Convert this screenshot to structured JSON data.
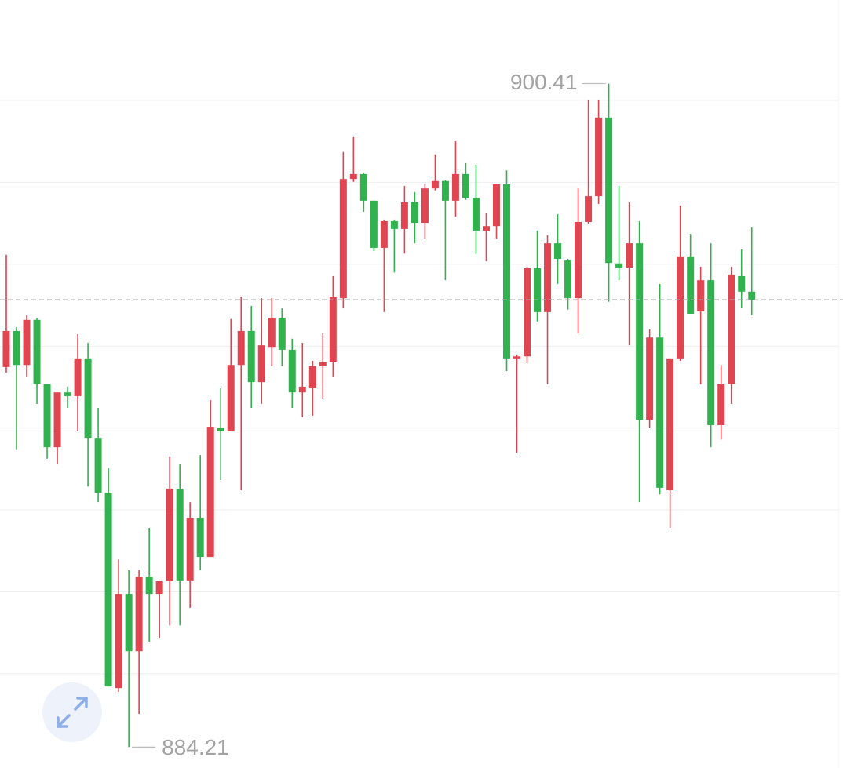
{
  "chart_data": {
    "type": "candlestick",
    "up_color": "#e04552",
    "down_color": "#31b24e",
    "ylim": [
      883.7,
      902.45
    ],
    "grid_lines": [
      886,
      888,
      890,
      892,
      894,
      896,
      898,
      900
    ],
    "max_label": 900.41,
    "min_label": 884.21,
    "open": [
      893.49,
      894.37,
      893.54,
      894.64,
      893.07,
      891.53,
      892.87,
      892.78,
      893.7,
      891.76,
      890.42,
      885.65,
      887.95,
      886.55,
      888.37,
      887.95,
      888.26,
      890.52,
      888.28,
      889.81,
      888.85,
      892.01,
      891.92,
      893.54,
      894.37,
      893.12,
      893.98,
      894.69,
      893.91,
      892.87,
      892.97,
      893.51,
      893.62,
      895.17,
      898.08,
      898.2,
      897.55,
      896.4,
      897.05,
      896.86,
      897.51,
      897.01,
      897.85,
      898.03,
      897.55,
      898.2,
      897.62,
      896.82,
      896.93,
      897.95,
      893.7,
      893.75,
      895.9,
      894.83,
      896.51,
      896.09,
      895.17,
      897.03,
      897.66,
      899.58,
      896.02,
      895.92,
      896.51,
      892.2,
      894.21,
      890.48,
      893.7,
      896.19,
      894.85,
      895.61,
      892.07,
      893.07,
      895.71,
      895.33
    ],
    "high": [
      896.23,
      894.46,
      894.75,
      894.69,
      893.07,
      892.87,
      893.01,
      894.29,
      894.08,
      892.49,
      891.02,
      888.79,
      888.53,
      888.53,
      889.56,
      888.28,
      891.3,
      891.11,
      890.19,
      891.34,
      892.68,
      892.97,
      894.66,
      895.21,
      894.98,
      895.17,
      895.17,
      894.92,
      894.18,
      894.08,
      893.64,
      894.31,
      895.71,
      898.74,
      899.1,
      898.24,
      897.55,
      897.09,
      897.09,
      897.91,
      897.76,
      897.95,
      898.68,
      898.05,
      899.0,
      898.47,
      898.43,
      897.24,
      897.95,
      898.29,
      893.79,
      895.94,
      896.82,
      896.71,
      897.22,
      896.13,
      897.85,
      900.0,
      900.0,
      900.41,
      897.91,
      897.51,
      897.05,
      894.41,
      895.52,
      893.7,
      897.43,
      896.74,
      895.94,
      896.51,
      893.54,
      895.94,
      896.36,
      896.9
    ],
    "low": [
      893.35,
      891.48,
      893.26,
      892.59,
      891.25,
      891.11,
      892.49,
      891.92,
      890.57,
      890.19,
      885.69,
      885.56,
      884.21,
      885.02,
      886.78,
      886.88,
      887.18,
      887.18,
      887.61,
      888.53,
      888.85,
      890.73,
      891.92,
      890.48,
      892.49,
      892.59,
      893.51,
      893.51,
      892.49,
      892.26,
      892.3,
      892.72,
      893.26,
      894.94,
      898.01,
      897.28,
      896.32,
      894.83,
      895.8,
      896.26,
      896.51,
      896.61,
      897.8,
      895.61,
      897.16,
      897.57,
      896.25,
      896.07,
      896.61,
      893.39,
      891.4,
      893.58,
      894.6,
      893.07,
      895.52,
      894.89,
      894.31,
      896.99,
      897.47,
      895.08,
      895.61,
      894.02,
      890.19,
      892.01,
      890.38,
      889.56,
      893.64,
      894.79,
      893.07,
      891.53,
      891.72,
      892.59,
      894.94,
      894.75
    ],
    "close": [
      894.37,
      893.54,
      894.64,
      893.07,
      891.53,
      892.87,
      892.78,
      893.7,
      891.76,
      890.42,
      885.69,
      887.95,
      886.55,
      888.37,
      887.95,
      888.26,
      890.52,
      888.28,
      889.81,
      888.85,
      892.03,
      891.92,
      893.54,
      894.37,
      893.12,
      894.02,
      894.69,
      893.91,
      892.87,
      893.01,
      893.51,
      893.62,
      895.21,
      898.08,
      898.2,
      897.55,
      896.4,
      897.05,
      896.86,
      897.51,
      897.01,
      897.85,
      898.03,
      897.55,
      898.2,
      897.62,
      896.82,
      896.93,
      897.95,
      893.7,
      893.75,
      895.9,
      894.83,
      896.51,
      896.13,
      895.17,
      897.03,
      897.66,
      899.58,
      896.03,
      895.92,
      896.51,
      892.2,
      894.21,
      890.54,
      893.7,
      896.19,
      894.79,
      895.61,
      892.07,
      893.07,
      895.75,
      895.33,
      895.13
    ]
  }
}
